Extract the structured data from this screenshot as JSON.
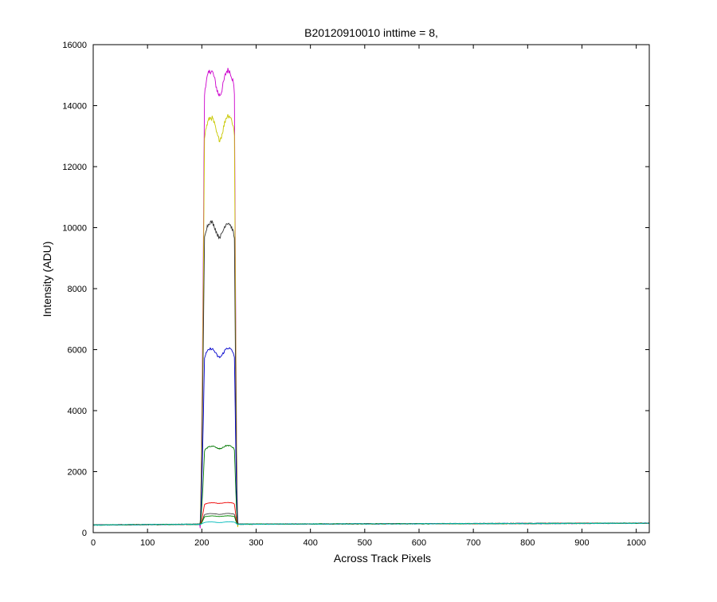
{
  "chart_data": {
    "type": "line",
    "title": "B20120910010 inttime = 8,",
    "xlabel": "Across Track Pixels",
    "ylabel": "Intensity (ADU)",
    "xlim": [
      0,
      1024
    ],
    "ylim": [
      0,
      16000
    ],
    "xticks": [
      0,
      100,
      200,
      300,
      400,
      500,
      600,
      700,
      800,
      900,
      1000
    ],
    "yticks": [
      0,
      2000,
      4000,
      6000,
      8000,
      10000,
      12000,
      14000,
      16000
    ],
    "grid": false,
    "legend": "none",
    "background_level": {
      "x": [
        0,
        200,
        1024
      ],
      "y": [
        250,
        275,
        310
      ]
    },
    "signal_window": {
      "rise_start": 197,
      "rise_end": 205,
      "fall_start": 260,
      "fall_end": 266
    },
    "series": [
      {
        "color": "#cc00cc",
        "edge_left": 15600,
        "center_dip": 14350,
        "edge_right": 15650
      },
      {
        "color": "#c8c800",
        "edge_left": 14000,
        "center_dip": 12900,
        "edge_right": 14150
      },
      {
        "color": "#333333",
        "edge_left": 10500,
        "center_dip": 9700,
        "edge_right": 10450
      },
      {
        "color": "#0000cc",
        "edge_left": 6200,
        "center_dip": 5750,
        "edge_right": 6250
      },
      {
        "color": "#007700",
        "edge_left": 2900,
        "center_dip": 2750,
        "edge_right": 2950
      },
      {
        "color": "#ee0000",
        "edge_left": 1000,
        "center_dip": 960,
        "edge_right": 1020
      },
      {
        "color": "#444444",
        "edge_left": 640,
        "center_dip": 600,
        "edge_right": 650
      },
      {
        "color": "#008800",
        "edge_left": 560,
        "center_dip": 530,
        "edge_right": 570
      },
      {
        "color": "#00bbbb",
        "edge_left": 360,
        "center_dip": 330,
        "edge_right": 370
      }
    ]
  }
}
